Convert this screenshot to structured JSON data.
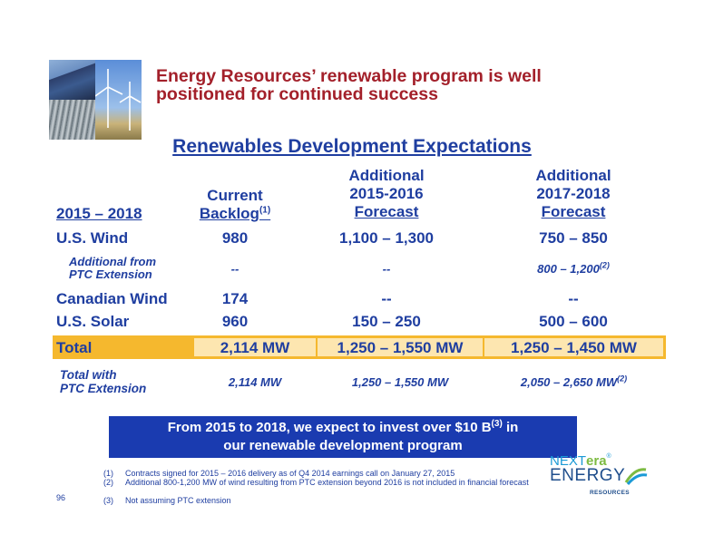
{
  "header": {
    "title_line1": "Energy Resources’ renewable program is well",
    "title_line2": "positioned for continued success"
  },
  "subtitle": "Renewables Development Expectations",
  "table": {
    "col0": "2015 – 2018",
    "col1_l1": "Current",
    "col1_l2": "Backlog",
    "col1_sup": "(1)",
    "col2_l1": "Additional",
    "col2_l2": "2015-2016",
    "col2_l3": "Forecast",
    "col3_l1": "Additional",
    "col3_l2": "2017-2018",
    "col3_l3": "Forecast",
    "rows": [
      {
        "label": "U.S. Wind",
        "c1": "980",
        "c2": "1,100 – 1,300",
        "c3": "750 – 850"
      },
      {
        "label_l1": "Additional from",
        "label_l2": "PTC Extension",
        "c1": "--",
        "c2": "--",
        "c3": "800 – 1,200",
        "c3_sup": "(2)"
      },
      {
        "label": "Canadian Wind",
        "c1": "174",
        "c2": "--",
        "c3": "--"
      },
      {
        "label": "U.S. Solar",
        "c1": "960",
        "c2": "150 – 250",
        "c3": "500 – 600"
      }
    ],
    "total": {
      "label": "Total",
      "c1": "2,114 MW",
      "c2": "1,250 – 1,550 MW",
      "c3": "1,250 – 1,450 MW"
    },
    "total_ptc": {
      "label_l1": "Total with",
      "label_l2": "PTC Extension",
      "c1": "2,114 MW",
      "c2": "1,250 – 1,550 MW",
      "c3": "2,050 – 2,650 MW",
      "c3_sup": "(2)"
    }
  },
  "callout": {
    "line1_a": "From 2015 to 2018, we expect to invest over $10 B",
    "line1_sup": "(3)",
    "line1_b": " in",
    "line2": "our renewable development program"
  },
  "footnotes": [
    {
      "num": "(1)",
      "text": "Contracts signed for 2015 – 2016 delivery as of Q4 2014 earnings call on January 27, 2015"
    },
    {
      "num": "(2)",
      "text": "Additional 800-1,200 MW of wind resulting from PTC extension beyond 2016 is not included in financial forecast"
    },
    {
      "num": "(3)",
      "text": "Not assuming PTC extension"
    }
  ],
  "page_number": "96",
  "logo": {
    "part1": "NEXT",
    "part2": "era",
    "tm": "®",
    "line2": "ENERGY",
    "line3": "RESOURCES"
  },
  "colors": {
    "blue": "#1f3ea0",
    "red": "#a3202a",
    "gold": "#f5b82e",
    "callout": "#1a3bb0"
  }
}
